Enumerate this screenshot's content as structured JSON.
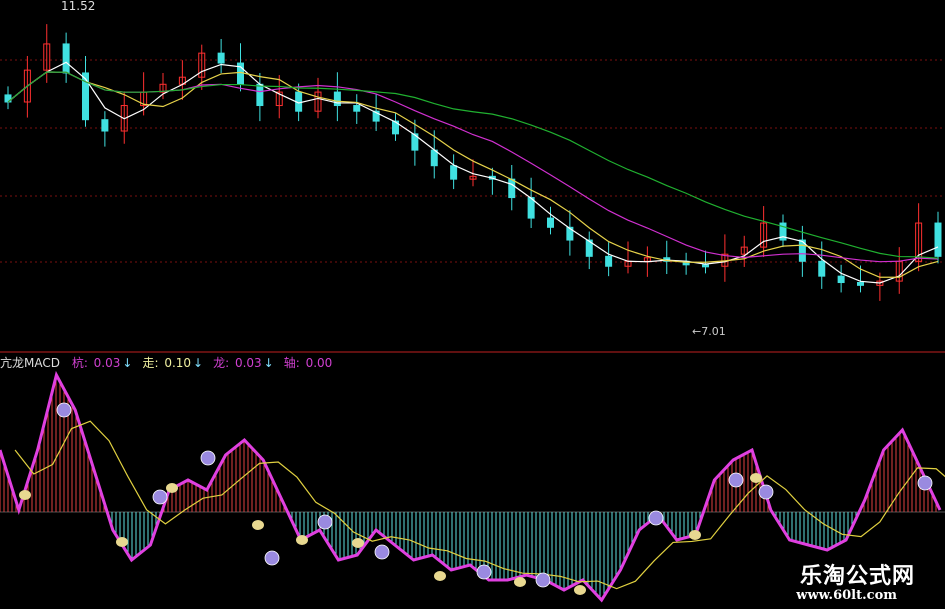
{
  "chart_data": [
    {
      "type": "candlestick",
      "title": "",
      "max_label": "11.52",
      "min_label": "←7.01",
      "closes": [
        10.15,
        10.6,
        10.97,
        10.56,
        9.9,
        9.74,
        10.1,
        10.29,
        10.4,
        10.5,
        10.84,
        10.7,
        10.4,
        10.1,
        10.29,
        10.02,
        10.29,
        10.1,
        10.02,
        9.88,
        9.7,
        9.47,
        9.25,
        9.06,
        9.1,
        9.06,
        8.8,
        8.51,
        8.38,
        8.2,
        7.97,
        7.83,
        7.9,
        7.95,
        7.9,
        7.85,
        7.83,
        8.0,
        8.1,
        8.44,
        8.2,
        7.9,
        7.69,
        7.6,
        7.56,
        7.62,
        7.9,
        8.44,
        7.97
      ],
      "ylim": [
        7.0,
        11.52
      ],
      "moving_average_colors": [
        "#ffffff",
        "#e6d24a",
        "#d030d0",
        "#20b030"
      ],
      "up_color": "#ff3030",
      "down_color": "#40e0e0"
    },
    {
      "type": "macd",
      "name": "亢龙MACD",
      "readouts": [
        {
          "label": "杭",
          "value": "0.03",
          "arrow": "↓",
          "color": "#d040d0"
        },
        {
          "label": "走",
          "value": "0.10",
          "arrow": "↓",
          "color": "#f0f0a0"
        },
        {
          "label": "龙",
          "value": "0.03",
          "arrow": "↓",
          "color": "#d040d0"
        },
        {
          "label": "轴",
          "value": "0.00",
          "arrow": "",
          "color": "#d040d0"
        }
      ],
      "line": [
        0.062,
        0.002,
        0.062,
        0.137,
        0.102,
        0.042,
        -0.018,
        -0.048,
        -0.033,
        0.022,
        0.032,
        0.022,
        0.057,
        0.072,
        0.052,
        0.012,
        -0.028,
        -0.018,
        -0.048,
        -0.043,
        -0.018,
        -0.033,
        -0.048,
        -0.043,
        -0.058,
        -0.053,
        -0.068,
        -0.068,
        -0.063,
        -0.068,
        -0.078,
        -0.068,
        -0.088,
        -0.058,
        -0.018,
        -0.003,
        -0.028,
        -0.023,
        0.032,
        0.052,
        0.062,
        0.002,
        -0.028,
        -0.033,
        -0.038,
        -0.028,
        0.012,
        0.062,
        0.082,
        0.042,
        0.002
      ],
      "zero": 0
    }
  ],
  "watermark": {
    "name": "乐淘公式网",
    "url": "www.60lt.com"
  }
}
